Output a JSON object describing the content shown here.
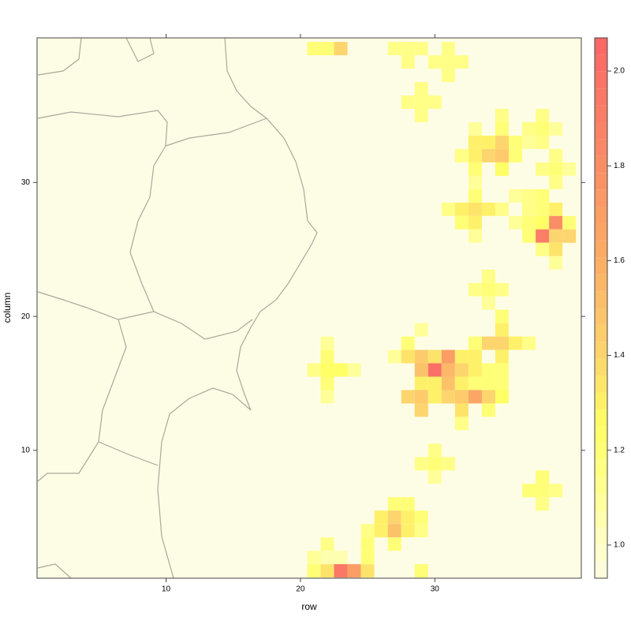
{
  "chart_data": {
    "type": "heatmap",
    "x_label": "row",
    "y_label": "column",
    "xlim": [
      0.4,
      40.9
    ],
    "ylim": [
      0.45,
      40.8
    ],
    "xticks": [
      10,
      20,
      30
    ],
    "yticks": [
      10,
      20,
      30
    ],
    "colorscale": [
      {
        "value": 0.93,
        "color": "#fdfde6"
      },
      {
        "value": 1.1,
        "color": "#ffff99"
      },
      {
        "value": 1.25,
        "color": "#ffff66"
      },
      {
        "value": 1.4,
        "color": "#fdd56e"
      },
      {
        "value": 1.6,
        "color": "#fbae66"
      },
      {
        "value": 1.8,
        "color": "#f98e66"
      },
      {
        "value": 2.07,
        "color": "#fb6666"
      }
    ],
    "colorbar": {
      "lim": [
        0.93,
        2.07
      ],
      "ticks": [
        {
          "value": 1,
          "label": "1.0"
        },
        1.2,
        1.4,
        1.6,
        1.8,
        {
          "value": 2,
          "label": "2.0"
        }
      ]
    },
    "cells": {
      "x": [
        21,
        22,
        23,
        27,
        28,
        29,
        31,
        28,
        30,
        31,
        32,
        31,
        29,
        28,
        29,
        30,
        29,
        35,
        38,
        33,
        35,
        37,
        38,
        39,
        33,
        34,
        35,
        36,
        37,
        38,
        32,
        33,
        34,
        35,
        36,
        39,
        33,
        35,
        38,
        39,
        40,
        33,
        39,
        33,
        36,
        37,
        38,
        31,
        32,
        33,
        34,
        35,
        37,
        38,
        39,
        32,
        33,
        36,
        37,
        38,
        39,
        40,
        33,
        37,
        38,
        39,
        40,
        38,
        39,
        39,
        34,
        33,
        34,
        35,
        34,
        35,
        29,
        35,
        28,
        33,
        34,
        35,
        36,
        37,
        27,
        28,
        29,
        30,
        31,
        32,
        33,
        35,
        29,
        30,
        31,
        32,
        33,
        34,
        35,
        29,
        30,
        31,
        32,
        33,
        34,
        35,
        28,
        29,
        30,
        31,
        32,
        33,
        34,
        35,
        29,
        32,
        34,
        32,
        22,
        22,
        21,
        22,
        23,
        24,
        22,
        22,
        30,
        29,
        30,
        31,
        30,
        38,
        37,
        38,
        39,
        38,
        27,
        28,
        26,
        27,
        28,
        29,
        25,
        26,
        27,
        28,
        29,
        22,
        25,
        27,
        21,
        22,
        23,
        25,
        21,
        22,
        23,
        24,
        25,
        29
      ],
      "y": [
        40,
        40,
        40,
        40,
        40,
        40,
        40,
        39,
        39,
        39,
        39,
        38,
        37,
        36,
        36,
        36,
        35,
        35,
        35,
        34,
        34,
        34,
        34,
        34,
        33,
        33,
        33,
        33,
        33,
        33,
        32,
        32,
        32,
        32,
        32,
        32,
        31,
        31,
        31,
        31,
        31,
        30,
        30,
        29,
        29,
        29,
        29,
        28,
        28,
        28,
        28,
        28,
        28,
        28,
        28,
        27,
        27,
        27,
        27,
        27,
        27,
        27,
        26,
        26,
        26,
        26,
        26,
        25,
        25,
        24,
        23,
        22,
        22,
        22,
        21,
        20,
        19,
        19,
        18,
        18,
        18,
        18,
        18,
        18,
        17,
        17,
        17,
        17,
        17,
        17,
        17,
        17,
        16,
        16,
        16,
        16,
        16,
        16,
        16,
        15,
        15,
        15,
        15,
        15,
        15,
        15,
        14,
        14,
        14,
        14,
        14,
        14,
        14,
        14,
        13,
        13,
        13,
        12,
        18,
        17,
        16,
        16,
        16,
        16,
        15,
        14,
        10,
        9,
        9,
        9,
        8,
        8,
        7,
        7,
        7,
        6,
        6,
        6,
        5,
        5,
        5,
        5,
        4,
        4,
        4,
        4,
        4,
        3,
        3,
        3,
        2,
        2,
        2,
        2,
        1,
        1,
        1,
        1,
        1,
        1
      ],
      "values": [
        1.2,
        1.2,
        1.4,
        1.15,
        1.15,
        1.15,
        1.15,
        1.15,
        1.15,
        1.15,
        1.15,
        1.15,
        1.15,
        1.15,
        1.15,
        1.15,
        1.15,
        1.15,
        1.15,
        1.1,
        1.2,
        1.15,
        1.2,
        1.1,
        1.3,
        1.3,
        1.4,
        1.2,
        1.1,
        1.15,
        1.15,
        1.3,
        1.4,
        1.45,
        1.2,
        1.15,
        1.2,
        1.25,
        1.15,
        1.2,
        1.1,
        1.1,
        1.15,
        1.2,
        1.1,
        1.15,
        1.2,
        1.15,
        1.3,
        1.35,
        1.3,
        1.15,
        1.15,
        1.2,
        1.3,
        1.2,
        1.3,
        1.1,
        1.2,
        1.25,
        1.8,
        1.2,
        1.1,
        1.2,
        1.9,
        1.4,
        1.4,
        1.15,
        1.35,
        1.1,
        1.15,
        1.15,
        1.2,
        1.15,
        1.1,
        1.2,
        1.1,
        1.3,
        1.2,
        1.2,
        1.4,
        1.4,
        1.3,
        1.15,
        1.1,
        1.35,
        1.45,
        1.35,
        1.7,
        1.3,
        1.3,
        1.3,
        1.5,
        2.0,
        1.55,
        1.4,
        1.3,
        1.2,
        1.2,
        1.3,
        1.3,
        1.5,
        1.3,
        1.2,
        1.2,
        1.2,
        1.4,
        1.45,
        1.3,
        1.4,
        1.45,
        1.65,
        1.4,
        1.25,
        1.4,
        1.35,
        1.2,
        1.15,
        1.1,
        1.2,
        1.15,
        1.25,
        1.25,
        1.1,
        1.2,
        1.1,
        1.15,
        1.15,
        1.2,
        1.15,
        1.1,
        1.2,
        1.2,
        1.2,
        1.15,
        1.15,
        1.2,
        1.2,
        1.3,
        1.4,
        1.3,
        1.2,
        1.15,
        1.3,
        1.5,
        1.3,
        1.15,
        1.15,
        1.2,
        1.2,
        1.1,
        1.05,
        1.05,
        1.2,
        1.2,
        1.35,
        1.95,
        1.7,
        1.35,
        1.2
      ]
    }
  }
}
